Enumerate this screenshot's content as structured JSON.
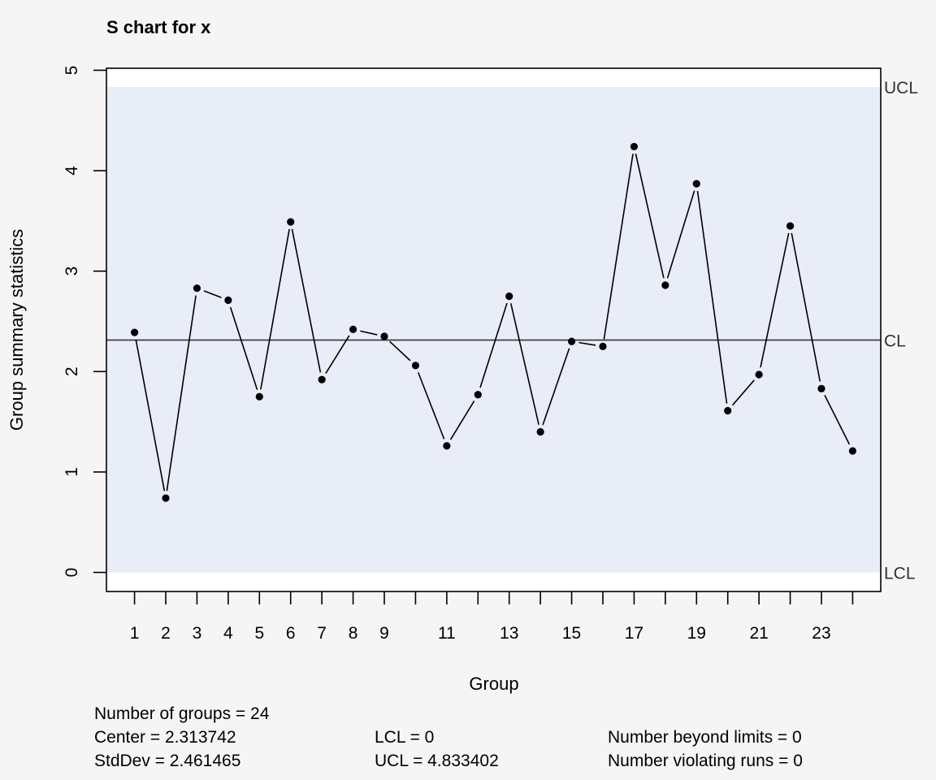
{
  "chart_data": {
    "type": "line",
    "title": "S chart for x",
    "xlabel": "Group",
    "ylabel": "Group summary statistics",
    "x": [
      1,
      2,
      3,
      4,
      5,
      6,
      7,
      8,
      9,
      10,
      11,
      12,
      13,
      14,
      15,
      16,
      17,
      18,
      19,
      20,
      21,
      22,
      23,
      24
    ],
    "values": [
      2.39,
      0.74,
      2.83,
      2.71,
      1.75,
      3.49,
      1.92,
      2.42,
      2.35,
      2.06,
      1.26,
      1.77,
      2.75,
      1.4,
      2.3,
      2.25,
      4.24,
      2.86,
      3.87,
      1.61,
      1.97,
      3.45,
      1.83,
      1.21
    ],
    "x_tick_labels": [
      "1",
      "2",
      "3",
      "4",
      "5",
      "6",
      "7",
      "8",
      "9",
      "11",
      "13",
      "15",
      "17",
      "19",
      "21",
      "23"
    ],
    "x_tick_positions": [
      1,
      2,
      3,
      4,
      5,
      6,
      7,
      8,
      9,
      11,
      13,
      15,
      17,
      19,
      21,
      23
    ],
    "y_tick_labels": [
      "0",
      "1",
      "2",
      "3",
      "4",
      "5"
    ],
    "y_tick_values": [
      0,
      1,
      2,
      3,
      4,
      5
    ],
    "xlim": [
      0.1,
      24.9
    ],
    "ylim": [
      -0.19,
      5.02
    ],
    "limits": {
      "ucl": 4.833402,
      "cl": 2.313742,
      "lcl": 0,
      "ucl_label": "UCL",
      "cl_label": "CL",
      "lcl_label": "LCL"
    },
    "grid": false,
    "colors": {
      "background": "#f5f5f5",
      "band": "#e8edf8",
      "line": "#000000",
      "limit_label": "#333333"
    }
  },
  "stats": {
    "groups": "Number of groups = 24",
    "center": "Center = 2.313742",
    "stddev": "StdDev = 2.461465",
    "lcl": "LCL = 0",
    "ucl": "UCL = 4.833402",
    "beyond": "Number beyond limits = 0",
    "violating": "Number violating runs = 0"
  }
}
